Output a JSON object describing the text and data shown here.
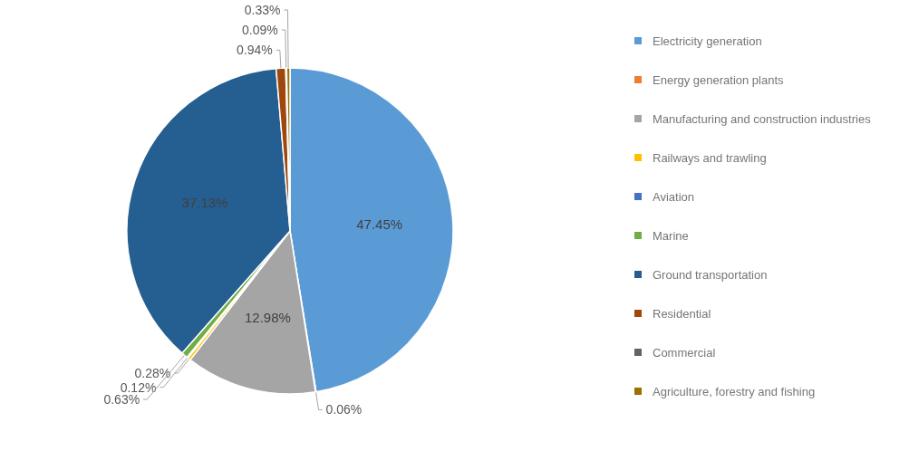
{
  "chart_data": {
    "type": "pie",
    "categories": [
      "Electricity generation",
      "Energy generation plants",
      "Manufacturing and construction industries",
      "Railways and trawling",
      "Aviation",
      "Marine",
      "Ground transportation",
      "Residential",
      "Commercial",
      "Agriculture, forestry and fishing"
    ],
    "values": [
      47.45,
      0.06,
      12.98,
      0.28,
      0.12,
      0.63,
      37.13,
      0.94,
      0.09,
      0.33
    ],
    "colors": [
      "#5b9bd5",
      "#ed7d31",
      "#a5a5a5",
      "#ffc000",
      "#4472c4",
      "#70ad47",
      "#255e91",
      "#9e480e",
      "#636363",
      "#997300"
    ],
    "value_labels": [
      "47.45%",
      "0.06%",
      "12.98%",
      "0.28%",
      "0.12%",
      "0.63%",
      "37.13%",
      "0.94%",
      "0.09%",
      "0.33%"
    ],
    "legend": "right"
  }
}
